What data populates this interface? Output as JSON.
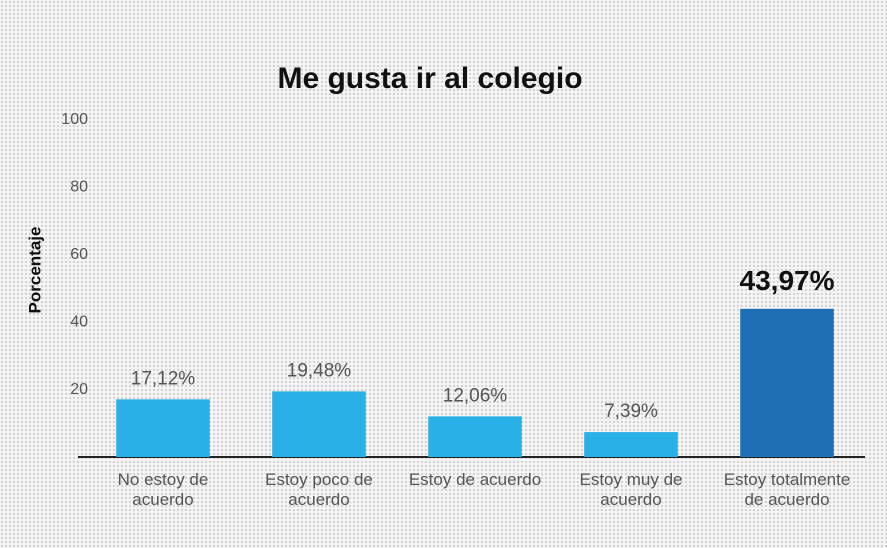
{
  "chart_data": {
    "type": "bar",
    "title": "Me gusta ir al colegio",
    "ylabel": "Porcentaje",
    "categories": [
      "No estoy de acuerdo",
      "Estoy poco de acuerdo",
      "Estoy de acuerdo",
      "Estoy muy de acuerdo",
      "Estoy totalmente de acuerdo"
    ],
    "values": [
      17.12,
      19.48,
      12.06,
      7.39,
      43.97
    ],
    "value_labels": [
      "17,12%",
      "19,48%",
      "12,06%",
      "7,39%",
      "43,97%"
    ],
    "colors": [
      "#29b0e6",
      "#29b0e6",
      "#29b0e6",
      "#29b0e6",
      "#1f6fb4"
    ],
    "ylim": [
      0,
      100
    ],
    "yticks": [
      20,
      40,
      60,
      80,
      100
    ],
    "grid": false
  }
}
